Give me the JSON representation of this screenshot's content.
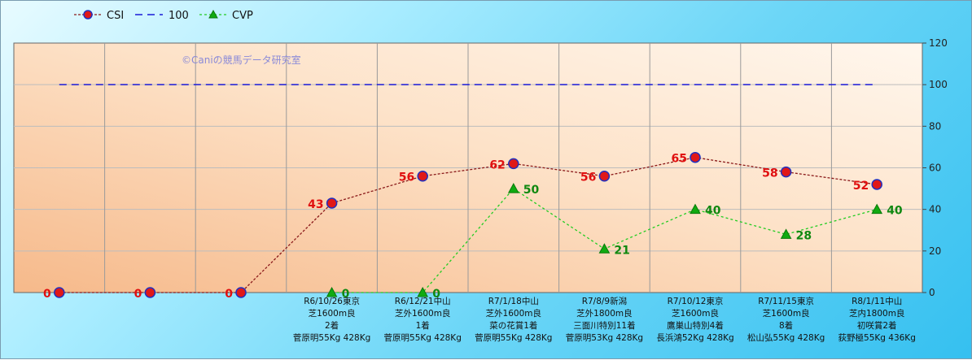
{
  "chart_data": {
    "type": "line",
    "watermark": "©Caniの競馬データ研究室",
    "ylim": [
      0,
      120
    ],
    "yticks": [
      0,
      20,
      40,
      60,
      80,
      100,
      120
    ],
    "categories": [
      [],
      [],
      [],
      [
        "R6/10/26東京",
        "芝1600m良",
        "2着",
        "菅原明55Kg 428Kg"
      ],
      [
        "R6/12/21中山",
        "芝外1600m良",
        "1着",
        "菅原明55Kg 428Kg"
      ],
      [
        "R7/1/18中山",
        "芝外1600m良",
        "菜の花賞1着",
        "菅原明55Kg 428Kg"
      ],
      [
        "R7/8/9新潟",
        "芝外1800m良",
        "三面川特別11着",
        "菅原明53Kg 428Kg"
      ],
      [
        "R7/10/12東京",
        "芝1600m良",
        "鷹巣山特別4着",
        "長浜鴻52Kg 428Kg"
      ],
      [
        "R7/11/15東京",
        "芝1600m良",
        "8着",
        "松山弘55Kg 428Kg"
      ],
      [
        "R8/1/11中山",
        "芝内1800m良",
        "初咲賞2着",
        "荻野極55Kg 436Kg"
      ]
    ],
    "series": [
      {
        "name": "CSI",
        "color": "#8b1a1a",
        "marker": "circle",
        "values": [
          0,
          0,
          0,
          43,
          56,
          62,
          56,
          65,
          58,
          52
        ]
      },
      {
        "name": "100",
        "color": "#1a1ad8",
        "marker": "none",
        "values": [
          100,
          100,
          100,
          100,
          100,
          100,
          100,
          100,
          100,
          100
        ]
      },
      {
        "name": "CVP",
        "color": "#22cc22",
        "marker": "triangle",
        "values": [
          null,
          null,
          null,
          0,
          0,
          50,
          21,
          40,
          28,
          40
        ]
      }
    ],
    "legend": "top-left",
    "grid": true
  }
}
